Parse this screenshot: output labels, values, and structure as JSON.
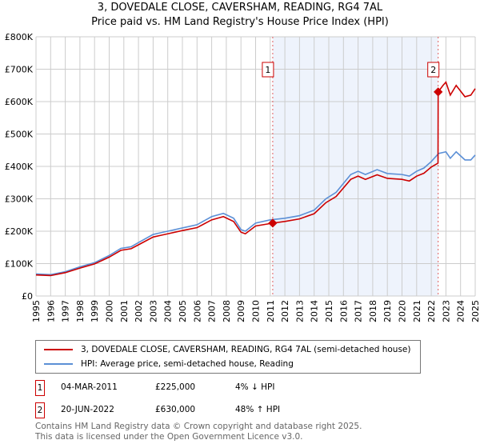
{
  "chart_data": {
    "type": "line",
    "title": "3, DOVEDALE CLOSE, CAVERSHAM, READING, RG4 7AL",
    "subtitle": "Price paid vs. HM Land Registry's House Price Index (HPI)",
    "xlim": [
      1995,
      2025
    ],
    "ylim": [
      0,
      800000
    ],
    "x_ticks": [
      "1995",
      "1996",
      "1997",
      "1998",
      "1999",
      "2000",
      "2001",
      "2002",
      "2003",
      "2004",
      "2005",
      "2006",
      "2007",
      "2008",
      "2009",
      "2010",
      "2011",
      "2012",
      "2013",
      "2014",
      "2015",
      "2016",
      "2017",
      "2018",
      "2019",
      "2020",
      "2021",
      "2022",
      "2023",
      "2024",
      "2025"
    ],
    "y_ticks": [
      {
        "v": 0,
        "label": "£0"
      },
      {
        "v": 100000,
        "label": "£100K"
      },
      {
        "v": 200000,
        "label": "£200K"
      },
      {
        "v": 300000,
        "label": "£300K"
      },
      {
        "v": 400000,
        "label": "£400K"
      },
      {
        "v": 500000,
        "label": "£500K"
      },
      {
        "v": 600000,
        "label": "£600K"
      },
      {
        "v": 700000,
        "label": "£700K"
      },
      {
        "v": 800000,
        "label": "£800K"
      }
    ],
    "grid": true,
    "series": [
      {
        "name": "3, DOVEDALE CLOSE, CAVERSHAM, READING, RG4 7AL (semi-detached house)",
        "color": "#cc0000",
        "x": [
          1995,
          1996,
          1997,
          1998,
          1999,
          2000,
          2000.8,
          2001.5,
          2002,
          2003,
          2003.5,
          2004,
          2005,
          2006,
          2007,
          2007.8,
          2008.5,
          2009,
          2009.3,
          2010,
          2011.17,
          2012,
          2013,
          2014,
          2014.8,
          2015.5,
          2016.5,
          2017,
          2017.5,
          2018.3,
          2019,
          2020,
          2020.5,
          2021,
          2021.5,
          2022,
          2022.46,
          2022.47,
          2022.8,
          2023,
          2023.3,
          2023.7,
          2024.3,
          2024.7,
          2025
        ],
        "y": [
          65000,
          63000,
          72000,
          86000,
          99000,
          120000,
          141000,
          146000,
          158000,
          182000,
          187000,
          192000,
          202000,
          211000,
          235000,
          245000,
          230000,
          197000,
          192000,
          216000,
          225000,
          230000,
          238000,
          254000,
          288000,
          307000,
          360000,
          370000,
          360000,
          374000,
          363000,
          360000,
          355000,
          370000,
          379000,
          398000,
          410000,
          630000,
          650000,
          660000,
          620000,
          650000,
          615000,
          620000,
          640000
        ]
      },
      {
        "name": "HPI: Average price, semi-detached house, Reading",
        "color": "#5b8fd6",
        "x": [
          1995,
          1996,
          1997,
          1998,
          1999,
          2000,
          2000.8,
          2001.5,
          2002,
          2003,
          2003.5,
          2004,
          2005,
          2006,
          2007,
          2007.8,
          2008.5,
          2009,
          2009.3,
          2010,
          2011,
          2012,
          2013,
          2014,
          2014.8,
          2015.5,
          2016.5,
          2017,
          2017.5,
          2018.3,
          2019,
          2020,
          2020.5,
          2021,
          2021.5,
          2022,
          2022.5,
          2023,
          2023.3,
          2023.7,
          2024.3,
          2024.7,
          2025
        ],
        "y": [
          68000,
          66000,
          75000,
          90000,
          103000,
          125000,
          147000,
          152000,
          165000,
          190000,
          195000,
          200000,
          210000,
          220000,
          245000,
          255000,
          240000,
          205000,
          200000,
          225000,
          235000,
          240000,
          248000,
          265000,
          300000,
          320000,
          375000,
          385000,
          375000,
          390000,
          378000,
          375000,
          370000,
          385000,
          395000,
          415000,
          440000,
          445000,
          425000,
          445000,
          420000,
          420000,
          435000
        ]
      }
    ],
    "sales": [
      {
        "id": "1",
        "x": 2011.17,
        "price": 225000,
        "date": "04-MAR-2011",
        "price_label": "£225,000",
        "hpi_diff": "4% ↓ HPI"
      },
      {
        "id": "2",
        "x": 2022.47,
        "price": 630000,
        "date": "20-JUN-2022",
        "price_label": "£630,000",
        "hpi_diff": "48% ↑ HPI"
      }
    ]
  },
  "footer": [
    "Contains HM Land Registry data © Crown copyright and database right 2025.",
    "This data is licensed under the Open Government Licence v3.0."
  ]
}
